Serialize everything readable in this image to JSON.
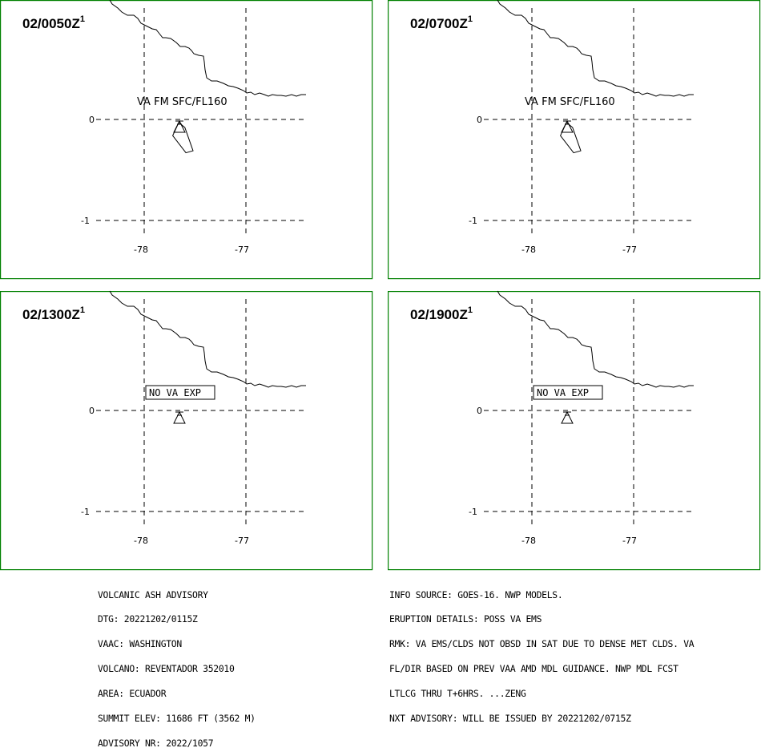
{
  "map": {
    "lon_ticks": [
      -78,
      -77
    ],
    "lat_ticks": [
      0,
      -1
    ],
    "volcano_position": {
      "lat": -0.08,
      "lon": -77.66
    }
  },
  "panels": [
    {
      "time": "02/0050Z",
      "superscript": "1",
      "label": "VA FM SFC/FL160",
      "label_type": "text",
      "ash_cloud": true,
      "ash_polygon": [
        [
          -77.66,
          -0.03
        ],
        [
          -77.6,
          -0.08
        ],
        [
          -77.52,
          -0.31
        ],
        [
          -77.59,
          -0.33
        ],
        [
          -77.72,
          -0.16
        ]
      ]
    },
    {
      "time": "02/0700Z",
      "superscript": "1",
      "label": "VA FM SFC/FL160",
      "label_type": "text",
      "ash_cloud": true,
      "ash_polygon": [
        [
          -77.66,
          -0.03
        ],
        [
          -77.6,
          -0.08
        ],
        [
          -77.52,
          -0.31
        ],
        [
          -77.59,
          -0.33
        ],
        [
          -77.72,
          -0.16
        ]
      ]
    },
    {
      "time": "02/1300Z",
      "superscript": "1",
      "label": "NO VA EXP",
      "label_type": "box",
      "ash_cloud": false
    },
    {
      "time": "02/1900Z",
      "superscript": "1",
      "label": "NO VA EXP",
      "label_type": "box",
      "ash_cloud": false
    }
  ],
  "advisory_left": [
    "VOLCANIC ASH ADVISORY",
    "DTG: 20221202/0115Z",
    "VAAC: WASHINGTON",
    "VOLCANO: REVENTADOR 352010",
    "AREA: ECUADOR",
    "SUMMIT ELEV: 11686 FT (3562 M)",
    "ADVISORY NR: 2022/1057"
  ],
  "advisory_right": [
    "INFO SOURCE: GOES-16. NWP MODELS.",
    "ERUPTION DETAILS: POSS VA EMS",
    "RMK: VA EMS/CLDS NOT OBSD IN SAT DUE TO DENSE MET CLDS. VA",
    "FL/DIR BASED ON PREV VAA AMD MDL GUIDANCE. NWP MDL FCST",
    "LTLCG THRU T+6HRS. ...ZENG",
    "NXT ADVISORY: WILL BE ISSUED BY 20221202/0715Z"
  ]
}
